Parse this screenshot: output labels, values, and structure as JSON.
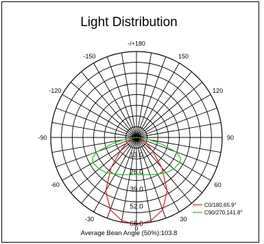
{
  "chart_data": {
    "type": "polar",
    "title": "Light Distribution",
    "angle_ticks": [
      "-/+180",
      "150",
      "120",
      "90",
      "60",
      "30",
      "0",
      "-30",
      "-60",
      "-90",
      "-120",
      "-150"
    ],
    "radial_labels": [
      "0.0",
      "13.0",
      "26.0",
      "39.0",
      "52.0",
      "65.0"
    ],
    "radial_max": 65.0,
    "series": [
      {
        "name": "C0/180,65.9°",
        "color": "#ee2222",
        "points": [
          {
            "angle": 0,
            "value": 65.9
          },
          {
            "angle": 10,
            "value": 63.8
          },
          {
            "angle": 20,
            "value": 58.2
          },
          {
            "angle": 30,
            "value": 46.5
          },
          {
            "angle": 40,
            "value": 30.0
          },
          {
            "angle": 50,
            "value": 16.0
          },
          {
            "angle": 60,
            "value": 8.5
          },
          {
            "angle": 70,
            "value": 4.0
          },
          {
            "angle": 80,
            "value": 1.5
          },
          {
            "angle": 90,
            "value": 0.5
          },
          {
            "angle": 180,
            "value": 0.0
          },
          {
            "angle": -90,
            "value": 0.5
          },
          {
            "angle": -80,
            "value": 1.5
          },
          {
            "angle": -70,
            "value": 4.0
          },
          {
            "angle": -60,
            "value": 8.5
          },
          {
            "angle": -50,
            "value": 16.0
          },
          {
            "angle": -40,
            "value": 30.0
          },
          {
            "angle": -30,
            "value": 46.5
          },
          {
            "angle": -20,
            "value": 58.2
          },
          {
            "angle": -10,
            "value": 63.8
          },
          {
            "angle": 0,
            "value": 65.9
          }
        ]
      },
      {
        "name": "C90/270,141.8°",
        "color": "#22cc22",
        "points": [
          {
            "angle": 0,
            "value": 28.0
          },
          {
            "angle": 10,
            "value": 28.5
          },
          {
            "angle": 20,
            "value": 30.0
          },
          {
            "angle": 30,
            "value": 32.0
          },
          {
            "angle": 40,
            "value": 35.0
          },
          {
            "angle": 50,
            "value": 37.0
          },
          {
            "angle": 60,
            "value": 38.0
          },
          {
            "angle": 65,
            "value": 37.0
          },
          {
            "angle": 70,
            "value": 32.0
          },
          {
            "angle": 75,
            "value": 20.0
          },
          {
            "angle": 80,
            "value": 10.0
          },
          {
            "angle": 85,
            "value": 4.0
          },
          {
            "angle": 90,
            "value": 0.5
          },
          {
            "angle": 180,
            "value": 0.0
          },
          {
            "angle": -90,
            "value": 0.5
          },
          {
            "angle": -85,
            "value": 4.0
          },
          {
            "angle": -80,
            "value": 10.0
          },
          {
            "angle": -75,
            "value": 20.0
          },
          {
            "angle": -70,
            "value": 32.0
          },
          {
            "angle": -65,
            "value": 37.0
          },
          {
            "angle": -60,
            "value": 38.0
          },
          {
            "angle": -50,
            "value": 37.0
          },
          {
            "angle": -40,
            "value": 35.0
          },
          {
            "angle": -30,
            "value": 32.0
          },
          {
            "angle": -20,
            "value": 30.0
          },
          {
            "angle": -10,
            "value": 28.5
          },
          {
            "angle": 0,
            "value": 28.0
          }
        ]
      }
    ],
    "grid": true,
    "legend_position": "bottom-right",
    "footer": "Average Bean Angle (50%):103.8"
  }
}
